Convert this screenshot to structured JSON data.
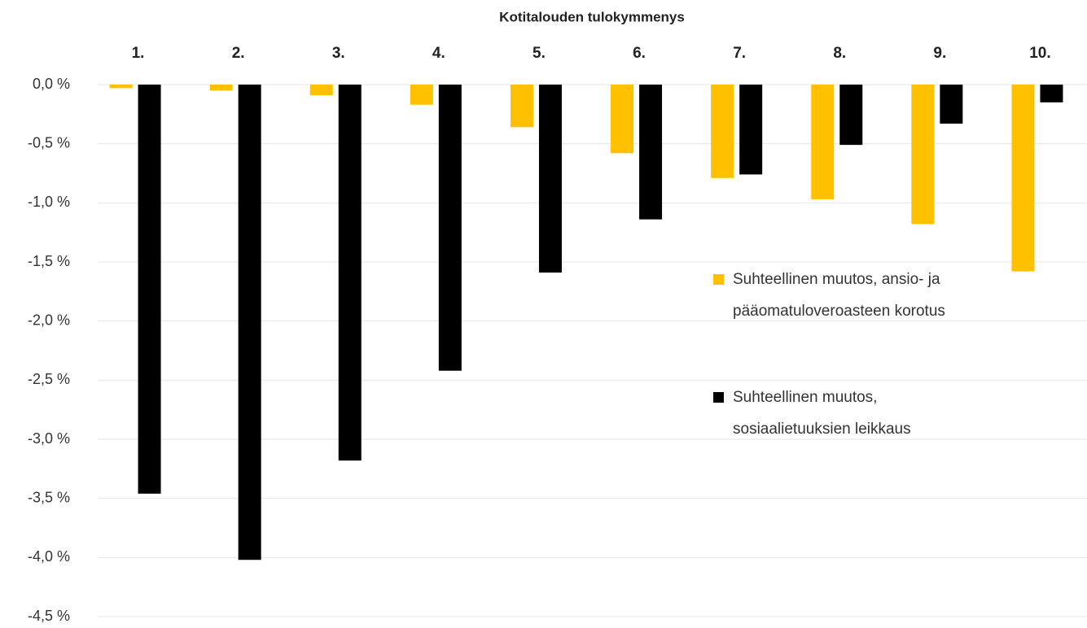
{
  "chart_data": {
    "type": "bar",
    "title": "Kotitalouden tulokymmenys",
    "categories": [
      "1.",
      "2.",
      "3.",
      "4.",
      "5.",
      "6.",
      "7.",
      "8.",
      "9.",
      "10."
    ],
    "series": [
      {
        "name": "Suhteellinen muutos, ansio- ja\npääomatuloveroasteen korotus",
        "color": "#ffc000",
        "values": [
          -0.03,
          -0.05,
          -0.09,
          -0.17,
          -0.36,
          -0.58,
          -0.79,
          -0.97,
          -1.18,
          -1.58
        ]
      },
      {
        "name": "Suhteellinen muutos,\nsosiaalietuuksien leikkaus",
        "color": "#000000",
        "values": [
          -3.46,
          -4.02,
          -3.18,
          -2.42,
          -1.59,
          -1.14,
          -0.76,
          -0.51,
          -0.33,
          -0.15
        ]
      }
    ],
    "ylim": [
      -4.5,
      0
    ],
    "yticks": [
      {
        "value": 0,
        "label": "0,0 %"
      },
      {
        "value": -0.5,
        "label": "-0,5 %"
      },
      {
        "value": -1,
        "label": "-1,0 %"
      },
      {
        "value": -1.5,
        "label": "-1,5 %"
      },
      {
        "value": -2,
        "label": "-2,0 %"
      },
      {
        "value": -2.5,
        "label": "-2,5 %"
      },
      {
        "value": -3,
        "label": "-3,0 %"
      },
      {
        "value": -3.5,
        "label": "-3,5 %"
      },
      {
        "value": -4,
        "label": "-4,0 %"
      },
      {
        "value": -4.5,
        "label": "-4,5 %"
      }
    ],
    "grid": true
  }
}
